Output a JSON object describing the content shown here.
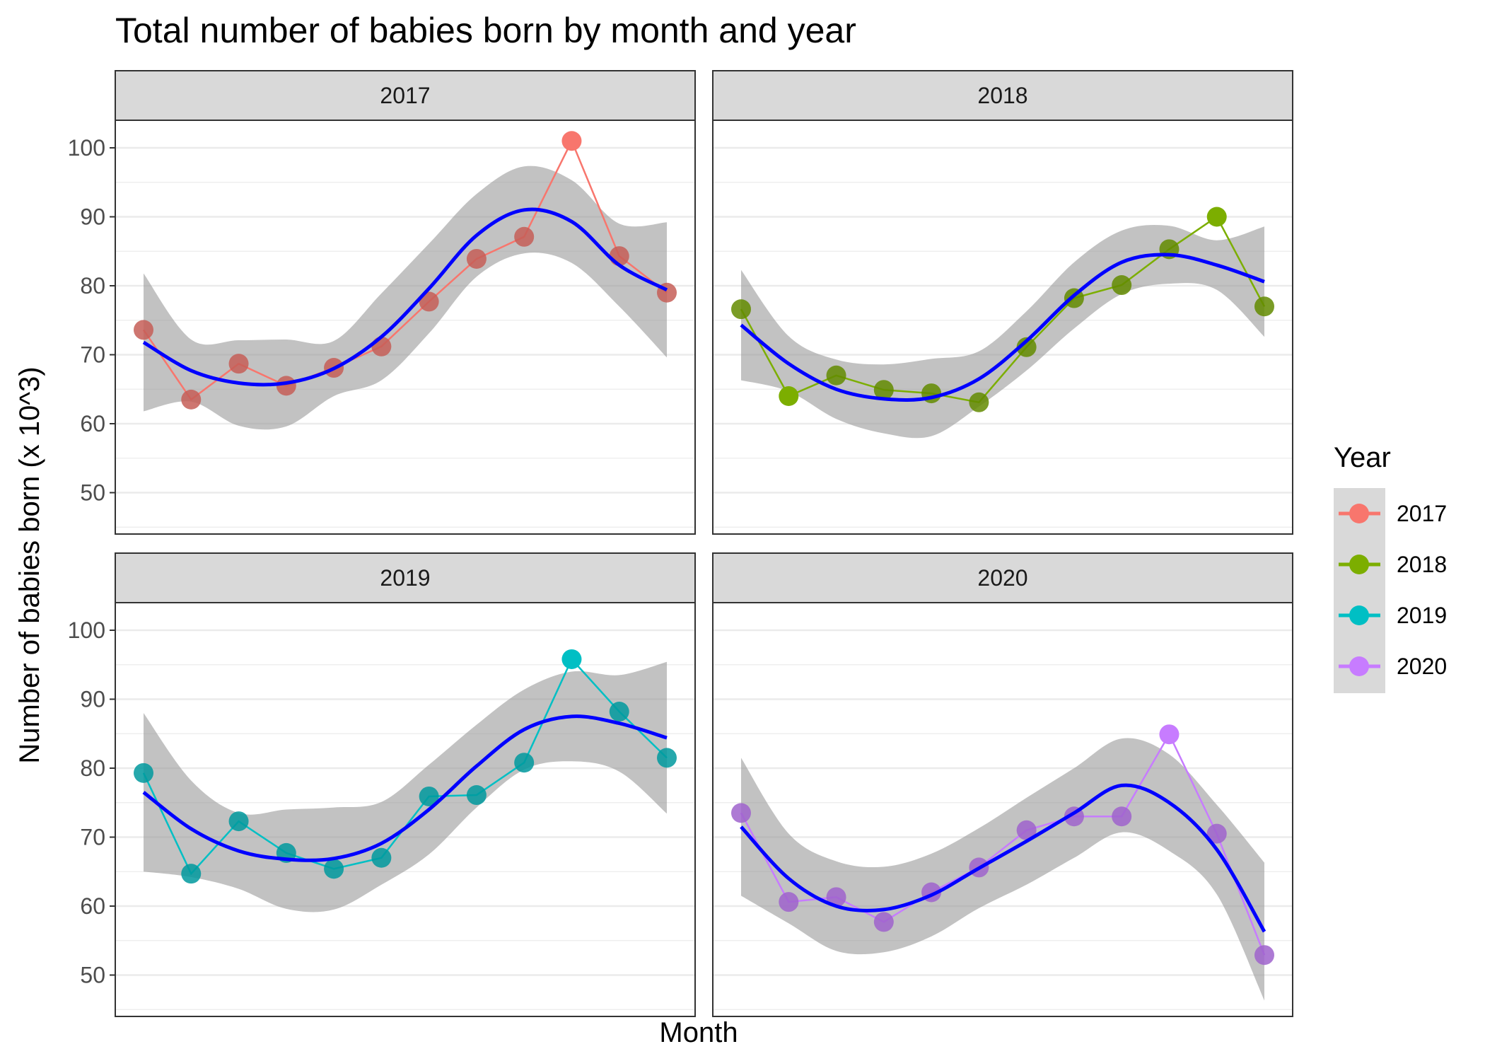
{
  "chart_data": {
    "type": "line",
    "title": "Total number of babies born by month and year",
    "xlabel": "Month",
    "ylabel": "Number of babies born (x 10^3)",
    "ylim": [
      44,
      104
    ],
    "yticks": [
      "50",
      "60",
      "70",
      "80",
      "90",
      "100"
    ],
    "grid": true,
    "legend": {
      "title": "Year",
      "placement": "right",
      "entries": [
        "2017",
        "2018",
        "2019",
        "2020"
      ]
    },
    "smoother": {
      "color": "#0000FF",
      "band_color": "#BEBEBE"
    },
    "panels": [
      {
        "strip": "2017",
        "color": "#F8766D",
        "values": [
          73.6,
          63.5,
          68.7,
          65.5,
          68.1,
          71.2,
          77.7,
          83.9,
          87.1,
          101.0,
          84.3,
          79.0
        ],
        "fit": [
          71.8,
          67.7,
          65.9,
          65.9,
          68.0,
          72.6,
          79.6,
          87.3,
          91.0,
          89.3,
          83.0,
          79.4
        ],
        "band": [
          10.0,
          4.5,
          6.2,
          6.3,
          4.0,
          6.3,
          6.5,
          6.0,
          6.3,
          6.0,
          6.0,
          9.8
        ]
      },
      {
        "strip": "2018",
        "color": "#7CAE00",
        "values": [
          76.6,
          64.0,
          67.0,
          64.9,
          64.4,
          63.1,
          71.1,
          78.2,
          80.1,
          85.3,
          90.0,
          77.0
        ],
        "fit": [
          74.3,
          68.7,
          65.0,
          63.6,
          63.8,
          66.5,
          72.0,
          78.6,
          83.4,
          84.5,
          83.0,
          80.6
        ],
        "band": [
          8.0,
          4.0,
          4.3,
          5.0,
          5.6,
          4.0,
          4.3,
          4.8,
          4.6,
          4.2,
          3.6,
          8.0
        ]
      },
      {
        "strip": "2019",
        "color": "#00BFC4",
        "values": [
          79.3,
          64.7,
          72.3,
          67.7,
          65.4,
          67.0,
          75.9,
          76.1,
          80.8,
          95.8,
          88.2,
          81.5
        ],
        "fit": [
          76.5,
          71.2,
          68.0,
          66.8,
          66.9,
          69.1,
          74.0,
          80.3,
          85.6,
          87.5,
          86.5,
          84.4
        ],
        "band": [
          11.5,
          7.0,
          5.5,
          7.2,
          7.4,
          6.0,
          6.5,
          6.0,
          5.8,
          6.5,
          7.0,
          11.0
        ]
      },
      {
        "strip": "2020",
        "color": "#C77CFF",
        "values": [
          73.5,
          60.6,
          61.3,
          57.7,
          62.0,
          65.6,
          71.0,
          73.0,
          73.0,
          84.9,
          70.5,
          52.9
        ],
        "fit": [
          71.5,
          64.0,
          60.0,
          59.5,
          61.6,
          65.5,
          69.4,
          73.5,
          77.5,
          75.0,
          68.2,
          56.3
        ],
        "band": [
          10.0,
          6.5,
          6.5,
          6.2,
          6.0,
          5.8,
          6.3,
          6.5,
          6.8,
          7.0,
          6.5,
          10.0
        ]
      }
    ]
  }
}
